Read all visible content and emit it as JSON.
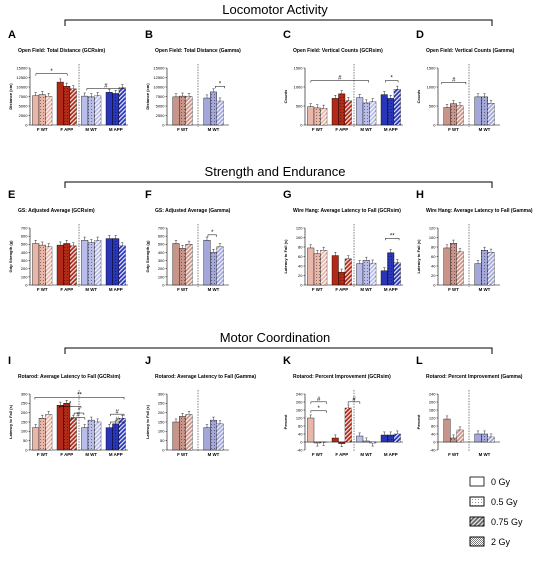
{
  "sections": [
    "Locomotor Activity",
    "Strength and Endurance",
    "Motor Coordination"
  ],
  "legend": [
    {
      "label": "0 Gy",
      "pattern": "solid"
    },
    {
      "label": "0.5 Gy",
      "pattern": "dots"
    },
    {
      "label": "0.75 Gy",
      "pattern": "hatch"
    },
    {
      "label": "2 Gy",
      "pattern": "dense"
    }
  ],
  "colors": {
    "f_wt": "#e9b7aa",
    "f_app": "#b22a17",
    "m_wt": "#b9bde9",
    "m_app": "#2a36b8",
    "f_wt_gamma": "#c9958a",
    "m_wt_gamma": "#a3a7da"
  },
  "chart_data": [
    {
      "id": "A",
      "type": "bar",
      "title": "Open Field: Total Distance (GCRsim)",
      "ylabel": "Distance (cm)",
      "ylim": [
        0,
        15000
      ],
      "yticks": [
        "0",
        "2500",
        "5000",
        "7500",
        "10000",
        "12500",
        "15000"
      ],
      "categories": [
        "F WT",
        "F APP",
        "M WT",
        "M APP"
      ],
      "values": [
        [
          7700,
          8000,
          7500
        ],
        [
          11300,
          10200,
          9500
        ],
        [
          7600,
          7400,
          7700
        ],
        [
          8600,
          8300,
          9800
        ]
      ],
      "annotations": [
        "*",
        "#"
      ]
    },
    {
      "id": "B",
      "type": "bar",
      "title": "Open Field: Total Distance (Gamma)",
      "ylabel": "Distance (cm)",
      "ylim": [
        0,
        15000
      ],
      "yticks": [
        "0",
        "2500",
        "5000",
        "7500",
        "10000",
        "12500",
        "15000"
      ],
      "categories": [
        "F WT",
        "M WT"
      ],
      "values": [
        [
          7400,
          7600,
          7500
        ],
        [
          7100,
          8700,
          6300
        ]
      ],
      "annotations": [
        "*"
      ]
    },
    {
      "id": "C",
      "type": "bar",
      "title": "Open Field: Vertical Counts (GCRsim)",
      "ylabel": "Counts",
      "ylim": [
        0,
        1500
      ],
      "yticks": [
        "0",
        "500",
        "1000",
        "1500"
      ],
      "categories": [
        "F WT",
        "F APP",
        "M WT",
        "M APP"
      ],
      "values": [
        [
          480,
          450,
          440
        ],
        [
          700,
          820,
          640
        ],
        [
          720,
          580,
          610
        ],
        [
          800,
          700,
          940
        ]
      ],
      "annotations": [
        "#",
        "*"
      ]
    },
    {
      "id": "D",
      "type": "bar",
      "title": "Open Field: Vertical Counts (Gamma)",
      "ylabel": "Counts",
      "ylim": [
        0,
        1500
      ],
      "yticks": [
        "0",
        "500",
        "1000",
        "1500"
      ],
      "categories": [
        "F WT",
        "M WT"
      ],
      "values": [
        [
          460,
          560,
          510
        ],
        [
          740,
          740,
          570
        ]
      ],
      "annotations": [
        "#"
      ]
    },
    {
      "id": "E",
      "type": "bar",
      "title": "GS: Adjusted Average (GCRsim)",
      "ylabel": "Grip Strength (g)",
      "ylim": [
        0,
        700
      ],
      "yticks": [
        "0",
        "100",
        "200",
        "300",
        "400",
        "500",
        "600",
        "700"
      ],
      "categories": [
        "F WT",
        "F APP",
        "M WT",
        "M APP"
      ],
      "values": [
        [
          510,
          490,
          470
        ],
        [
          490,
          510,
          480
        ],
        [
          550,
          520,
          550
        ],
        [
          570,
          570,
          480
        ]
      ],
      "annotations": []
    },
    {
      "id": "F",
      "type": "bar",
      "title": "GS: Adjusted Average (Gamma)",
      "ylabel": "Grip Strength (g)",
      "ylim": [
        0,
        700
      ],
      "yticks": [
        "0",
        "100",
        "200",
        "300",
        "400",
        "500",
        "600",
        "700"
      ],
      "categories": [
        "F WT",
        "M WT"
      ],
      "values": [
        [
          510,
          450,
          500
        ],
        [
          550,
          400,
          470
        ]
      ],
      "annotations": [
        "*"
      ]
    },
    {
      "id": "G",
      "type": "bar",
      "title": "Wire Hang: Average Latency to Fall (GCRsim)",
      "ylabel": "Latency to Fall (s)",
      "ylim": [
        0,
        120
      ],
      "yticks": [
        "0",
        "20",
        "40",
        "60",
        "80",
        "100",
        "120"
      ],
      "categories": [
        "F WT",
        "F APP",
        "M WT",
        "M APP"
      ],
      "values": [
        [
          78,
          66,
          73
        ],
        [
          62,
          27,
          55
        ],
        [
          45,
          52,
          46
        ],
        [
          30,
          68,
          47
        ]
      ],
      "annotations": [
        "**"
      ]
    },
    {
      "id": "H",
      "type": "bar",
      "title": "Wire Hang: Average Latency to Fall (Gamma)",
      "ylabel": "Latency to Fall (s)",
      "ylim": [
        0,
        120
      ],
      "yticks": [
        "0",
        "20",
        "40",
        "60",
        "80",
        "100",
        "120"
      ],
      "categories": [
        "F WT",
        "M WT"
      ],
      "values": [
        [
          78,
          88,
          70
        ],
        [
          45,
          73,
          69
        ]
      ],
      "annotations": []
    },
    {
      "id": "I",
      "type": "bar",
      "title": "Rotarod: Average Latency to Fall (GCRsim)",
      "ylabel": "Latency to Fall (s)",
      "ylim": [
        0,
        300
      ],
      "yticks": [
        "0",
        "50",
        "100",
        "150",
        "200",
        "250",
        "300"
      ],
      "categories": [
        "F WT",
        "F APP",
        "M WT",
        "M APP"
      ],
      "values": [
        [
          120,
          170,
          190
        ],
        [
          240,
          250,
          170
        ],
        [
          120,
          160,
          150
        ],
        [
          120,
          140,
          170
        ]
      ],
      "annotations": [
        "*",
        "**",
        "*",
        "#",
        "#",
        "#"
      ]
    },
    {
      "id": "J",
      "type": "bar",
      "title": "Rotarod: Average Latency to Fall (Gamma)",
      "ylabel": "Latency to Fall (s)",
      "ylim": [
        0,
        300
      ],
      "yticks": [
        "0",
        "50",
        "100",
        "150",
        "200",
        "250",
        "300"
      ],
      "categories": [
        "F WT",
        "M WT"
      ],
      "values": [
        [
          150,
          180,
          190
        ],
        [
          120,
          160,
          140
        ]
      ],
      "annotations": []
    },
    {
      "id": "K",
      "type": "bar",
      "title": "Rotarod: Percent Improvement (GCRsim)",
      "ylabel": "Percent",
      "ylim": [
        -40,
        240
      ],
      "yticks": [
        "-40",
        "0",
        "40",
        "80",
        "120",
        "160",
        "200",
        "240"
      ],
      "categories": [
        "F WT",
        "F APP",
        "M WT",
        "M APP"
      ],
      "values": [
        [
          120,
          -5,
          -2
        ],
        [
          20,
          -8,
          170
        ],
        [
          30,
          5,
          -5
        ],
        [
          35,
          35,
          40
        ]
      ],
      "annotations": [
        "#",
        "*",
        "#"
      ]
    },
    {
      "id": "L",
      "type": "bar",
      "title": "Rotarod: Percent Improvement (Gamma)",
      "ylabel": "Percent",
      "ylim": [
        -40,
        240
      ],
      "yticks": [
        "-40",
        "0",
        "40",
        "80",
        "120",
        "160",
        "200",
        "240"
      ],
      "categories": [
        "F WT",
        "M WT"
      ],
      "values": [
        [
          115,
          20,
          60
        ],
        [
          40,
          40,
          25
        ]
      ],
      "annotations": []
    }
  ]
}
